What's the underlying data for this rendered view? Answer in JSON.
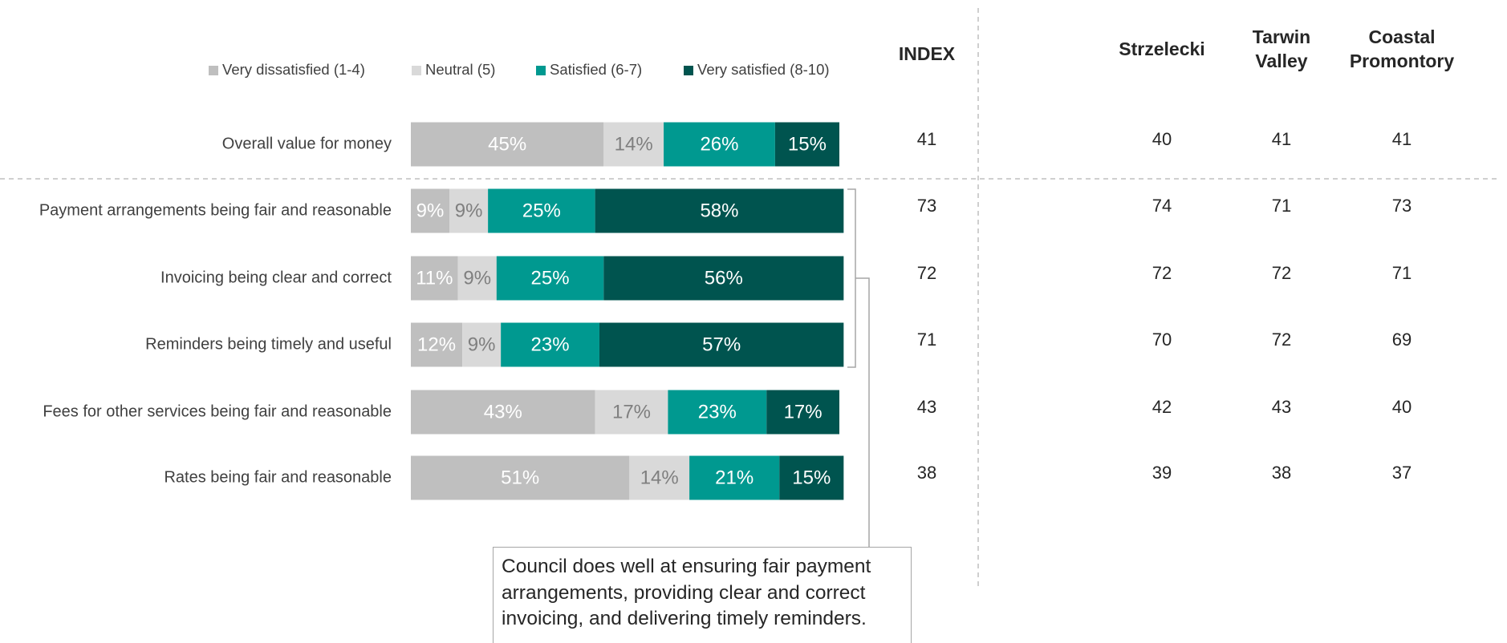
{
  "chart_data": {
    "type": "stacked-bar-horizontal",
    "categories": [
      "Overall value for money",
      "Payment arrangements being fair and reasonable",
      "Invoicing being clear and correct",
      "Reminders being timely and useful",
      "Fees for other services being fair and reasonable",
      "Rates being fair and reasonable"
    ],
    "xlim": [
      0,
      100
    ],
    "legend": "top",
    "series": [
      {
        "name": "Very dissatisfied (1-4)",
        "color": "#bfbfbf",
        "label_color": "#ffffff",
        "values": [
          45,
          9,
          11,
          12,
          43,
          51
        ],
        "value_labels": [
          "45%",
          "9%",
          "11%",
          "12%",
          "43%",
          "51%"
        ]
      },
      {
        "name": "Neutral (5)",
        "color": "#d9d9d9",
        "label_color": "#7f7f7f",
        "values": [
          14,
          9,
          9,
          9,
          17,
          14
        ],
        "value_labels": [
          "14%",
          "9%",
          "9%",
          "9%",
          "17%",
          "14%"
        ]
      },
      {
        "name": "Satisfied (6-7)",
        "color": "#009990",
        "label_color": "#ffffff",
        "values": [
          26,
          25,
          25,
          23,
          23,
          21
        ],
        "value_labels": [
          "26%",
          "25%",
          "25%",
          "23%",
          "23%",
          "21%"
        ]
      },
      {
        "name": "Very satisfied (8-10)",
        "color": "#00544f",
        "label_color": "#ffffff",
        "values": [
          15,
          58,
          56,
          57,
          17,
          15
        ],
        "value_labels": [
          "15%",
          "58%",
          "56%",
          "57%",
          "17%",
          "15%"
        ]
      }
    ],
    "table": {
      "columns": [
        "INDEX",
        "Strzelecki",
        "Tarwin Valley",
        "Coastal Promontory"
      ],
      "rows": [
        [
          41,
          40,
          41,
          41
        ],
        [
          73,
          74,
          71,
          73
        ],
        [
          72,
          72,
          72,
          71
        ],
        [
          71,
          70,
          72,
          69
        ],
        [
          43,
          42,
          43,
          40
        ],
        [
          38,
          39,
          38,
          37
        ]
      ]
    },
    "annotation": "Council does well at ensuring fair payment arrangements, providing clear and correct invoicing, and delivering timely reminders."
  }
}
